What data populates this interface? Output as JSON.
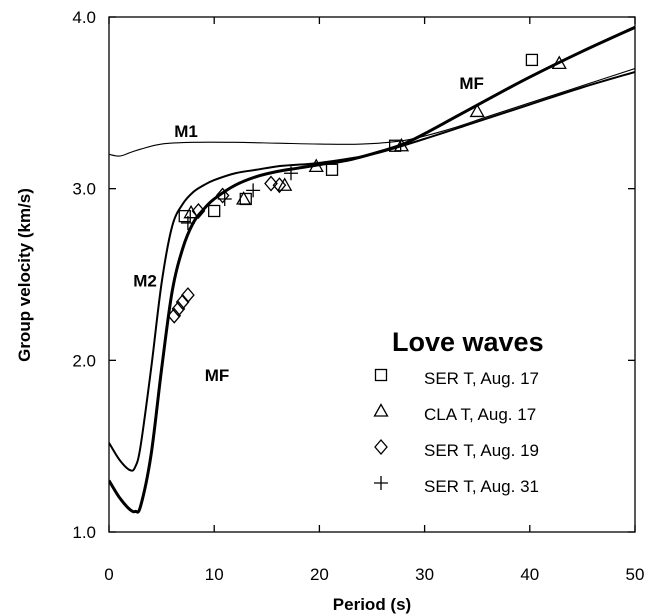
{
  "chart_data": {
    "type": "scatter",
    "xlabel": "Period (s)",
    "ylabel": "Group velocity (km/s)",
    "xlim": [
      0,
      50
    ],
    "ylim": [
      1.0,
      4.0
    ],
    "xticks": [
      0,
      10,
      20,
      30,
      40,
      50
    ],
    "xtick_labels": [
      "0",
      "10",
      "20",
      "30",
      "40",
      "50"
    ],
    "yticks": [
      1.0,
      2.0,
      3.0,
      4.0
    ],
    "ytick_labels": [
      "1.0",
      "2.0",
      "3.0",
      "4.0"
    ],
    "grid": false,
    "legend": {
      "title": "Love waves",
      "position": "bottom-right",
      "entries": [
        {
          "marker": "square",
          "label": "SER T, Aug. 17"
        },
        {
          "marker": "triangle",
          "label": "CLA T, Aug. 17"
        },
        {
          "marker": "diamond",
          "label": "SER T, Aug. 19"
        },
        {
          "marker": "plus",
          "label": "SER T, Aug. 31"
        }
      ]
    },
    "curves": [
      {
        "name": "M1",
        "style": "thin",
        "x": [
          0,
          1,
          2,
          3,
          5,
          8,
          12,
          16,
          20,
          24,
          28,
          32,
          36,
          40,
          44,
          48,
          50
        ],
        "y": [
          3.2,
          3.19,
          3.21,
          3.23,
          3.26,
          3.27,
          3.27,
          3.265,
          3.26,
          3.26,
          3.28,
          3.34,
          3.42,
          3.5,
          3.58,
          3.66,
          3.7
        ]
      },
      {
        "name": "M2",
        "style": "medium",
        "x": [
          0,
          1,
          2,
          2.5,
          3,
          4,
          5,
          6,
          7,
          8,
          9,
          10,
          12,
          14,
          16,
          18,
          20,
          25,
          30,
          35,
          40,
          45,
          50
        ],
        "y": [
          1.52,
          1.42,
          1.36,
          1.38,
          1.5,
          1.95,
          2.45,
          2.78,
          2.91,
          2.98,
          3.02,
          3.05,
          3.09,
          3.11,
          3.13,
          3.14,
          3.15,
          3.2,
          3.29,
          3.39,
          3.49,
          3.59,
          3.68
        ]
      },
      {
        "name": "MF",
        "style": "thick",
        "x": [
          0,
          1,
          2,
          2.5,
          3,
          4,
          5,
          6,
          7,
          8,
          9,
          10,
          12,
          14,
          16,
          18,
          20,
          23,
          26,
          28,
          30,
          33,
          36,
          40,
          45,
          50
        ],
        "y": [
          1.3,
          1.2,
          1.13,
          1.12,
          1.15,
          1.45,
          1.95,
          2.4,
          2.65,
          2.8,
          2.88,
          2.94,
          3.02,
          3.07,
          3.1,
          3.12,
          3.14,
          3.17,
          3.22,
          3.26,
          3.32,
          3.42,
          3.52,
          3.65,
          3.8,
          3.94
        ]
      }
    ],
    "curve_labels": [
      {
        "text": "M1",
        "x": 6.2,
        "y": 3.3
      },
      {
        "text": "M2",
        "x": 2.3,
        "y": 2.43
      },
      {
        "text": "MF",
        "x": 9.1,
        "y": 1.88
      },
      {
        "text": "MF",
        "x": 33.3,
        "y": 3.58
      }
    ],
    "series": [
      {
        "name": "SER T, Aug. 17",
        "marker": "square",
        "points": [
          [
            7.2,
            2.84
          ],
          [
            10.0,
            2.87
          ],
          [
            13.0,
            2.94
          ],
          [
            21.2,
            3.11
          ],
          [
            27.2,
            3.25
          ],
          [
            40.2,
            3.75
          ]
        ]
      },
      {
        "name": "CLA T, Aug. 17",
        "marker": "triangle",
        "points": [
          [
            7.8,
            2.86
          ],
          [
            12.8,
            2.94
          ],
          [
            16.7,
            3.02
          ],
          [
            19.7,
            3.13
          ],
          [
            27.8,
            3.25
          ],
          [
            35.0,
            3.45
          ],
          [
            42.8,
            3.73
          ]
        ]
      },
      {
        "name": "SER T, Aug. 19",
        "marker": "diamond",
        "points": [
          [
            6.2,
            2.26
          ],
          [
            6.6,
            2.3
          ],
          [
            7.0,
            2.34
          ],
          [
            7.5,
            2.38
          ],
          [
            8.5,
            2.87
          ],
          [
            10.8,
            2.96
          ],
          [
            15.4,
            3.03
          ],
          [
            16.2,
            3.02
          ]
        ]
      },
      {
        "name": "SER T, Aug. 31",
        "marker": "plus",
        "points": [
          [
            7.5,
            2.8
          ],
          [
            11.0,
            2.94
          ],
          [
            13.7,
            2.99
          ],
          [
            17.3,
            3.09
          ]
        ]
      }
    ]
  }
}
